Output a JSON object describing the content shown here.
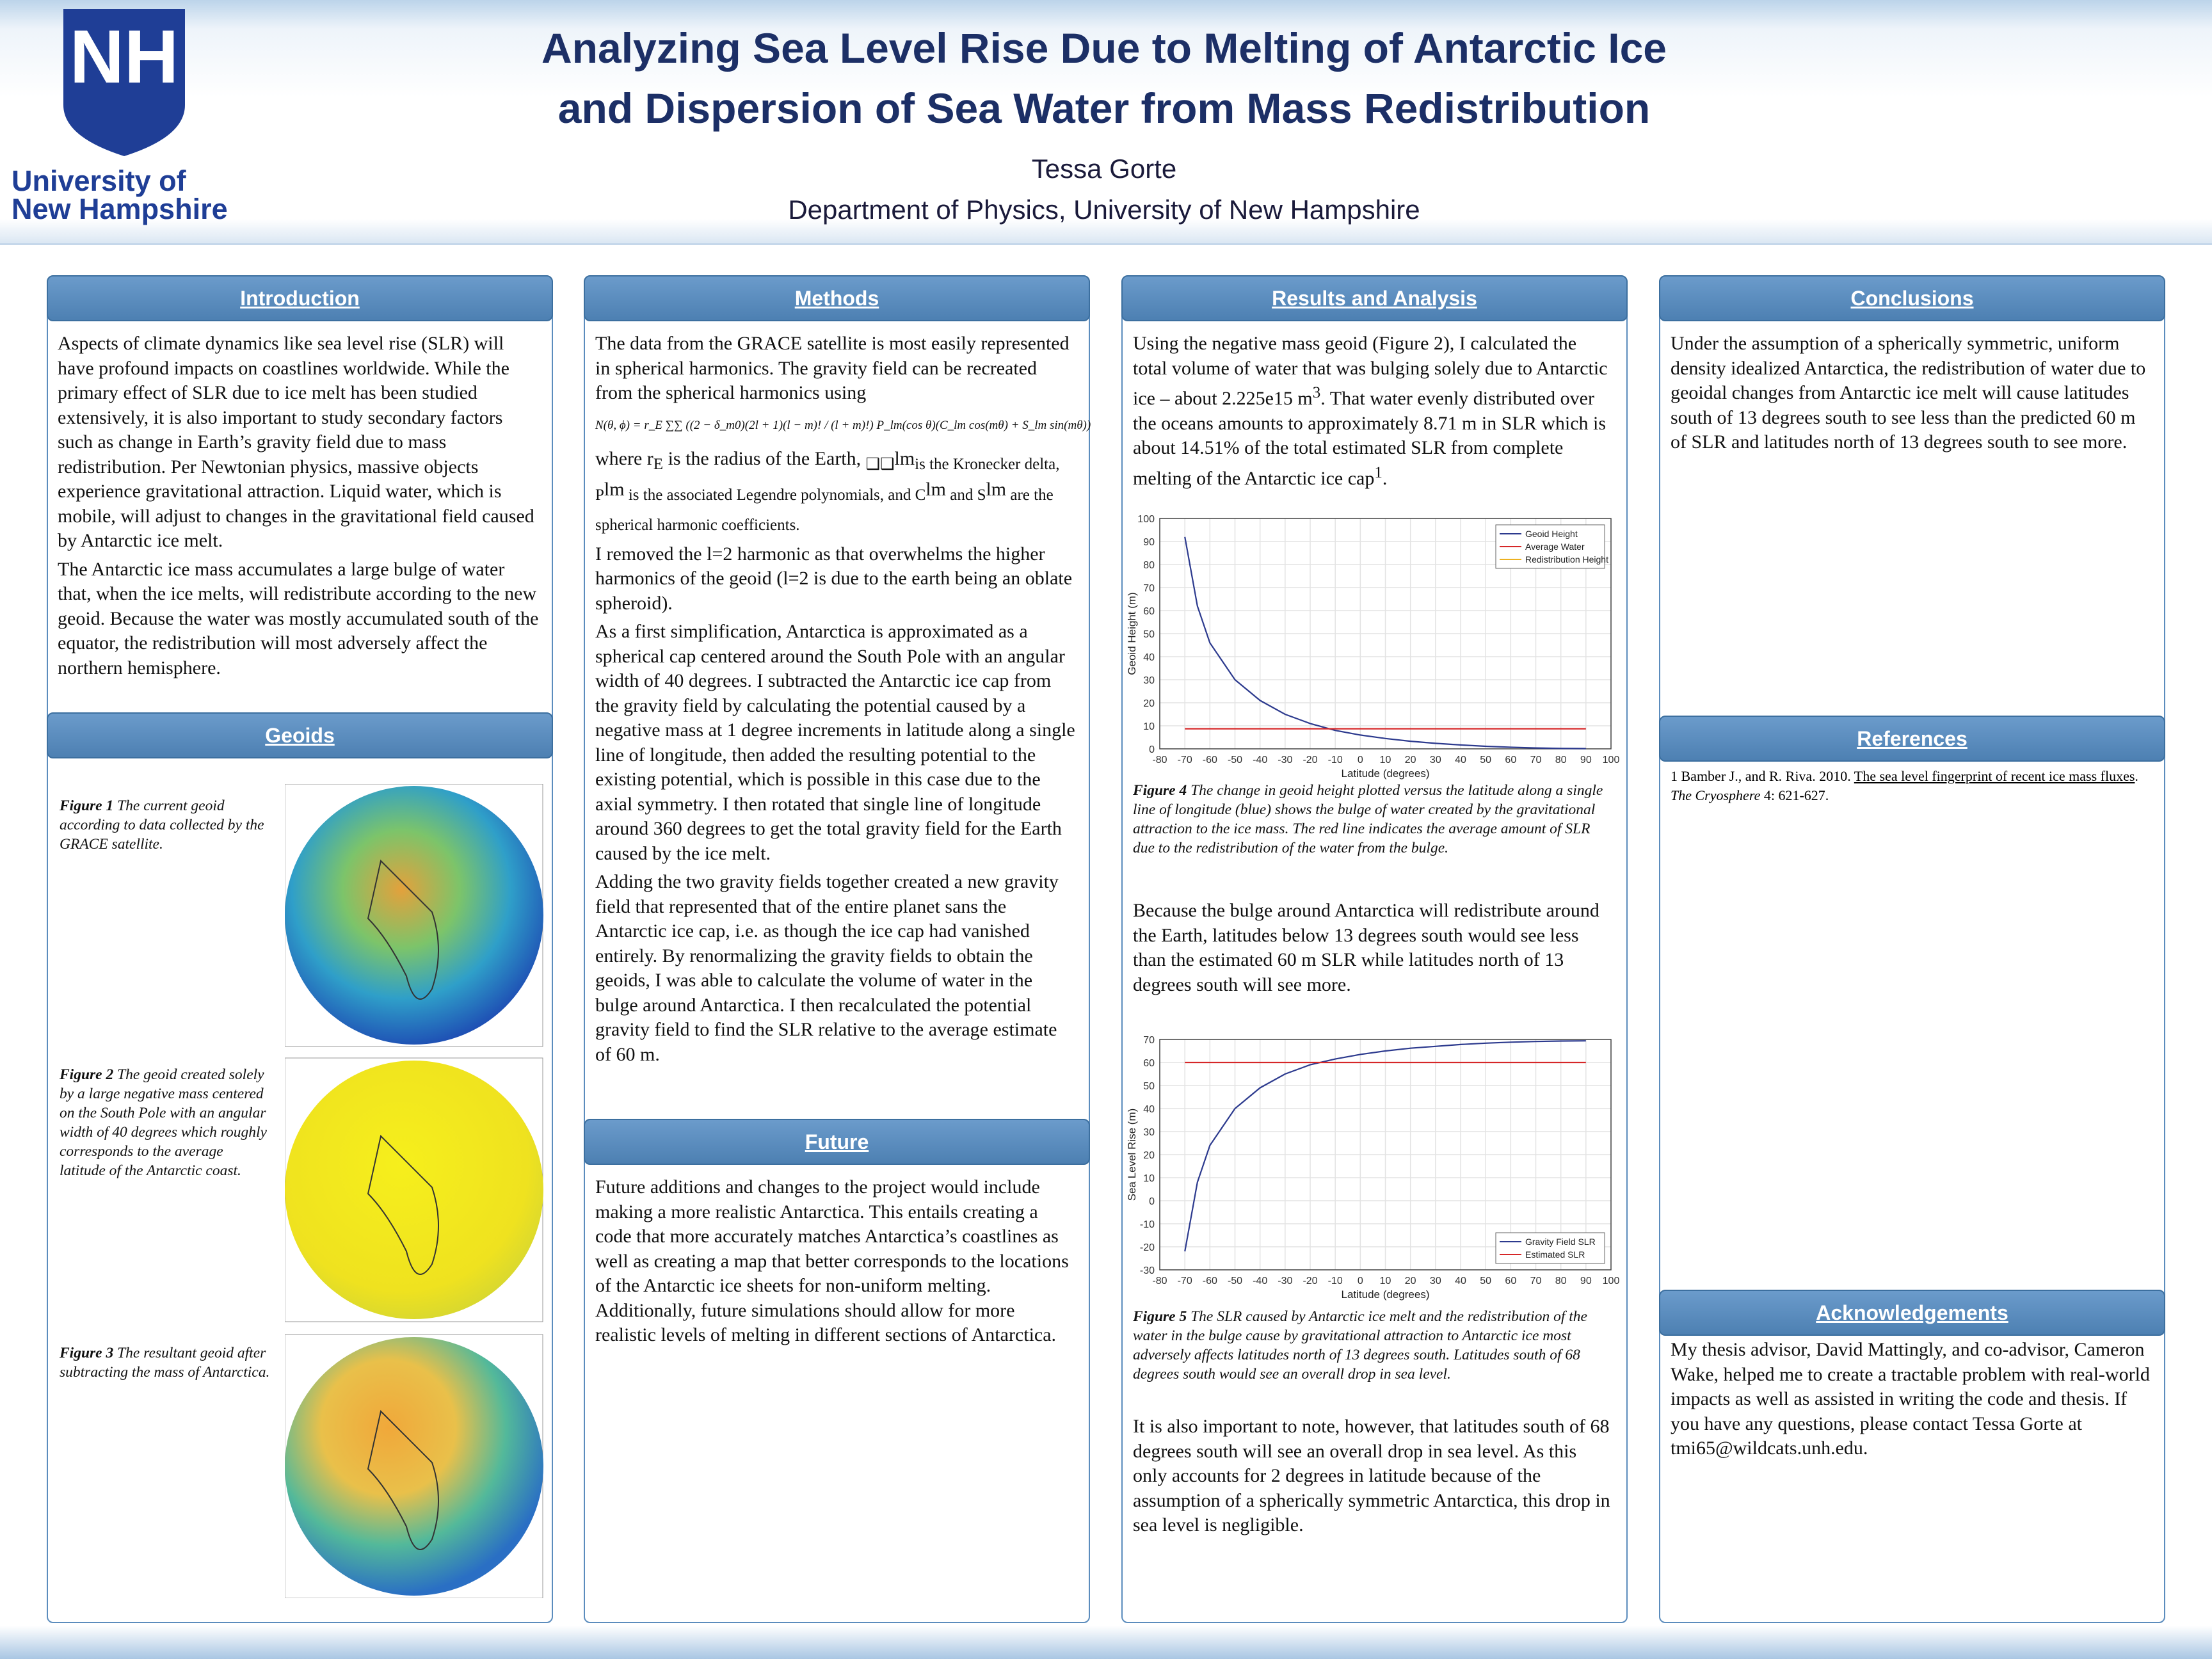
{
  "header": {
    "logo": {
      "mark": "NH",
      "line1": "University of",
      "line2": "New Hampshire"
    },
    "title_line1": "Analyzing Sea Level Rise Due to Melting of Antarctic Ice",
    "title_line2": "and Dispersion of Sea Water from Mass Redistribution",
    "author": "Tessa Gorte",
    "department": "Department of Physics, University of New Hampshire"
  },
  "introduction": {
    "heading": "Introduction",
    "paragraphs": [
      "Aspects of climate dynamics like sea level rise (SLR) will have profound impacts on coastlines worldwide. While the primary effect of SLR due to ice melt has been studied extensively, it is also important to study secondary factors such as change in Earth’s gravity field due to mass redistribution. Per Newtonian physics, massive objects experience gravitational attraction. Liquid water, which is mobile, will adjust to changes in the gravitational field caused by Antarctic ice melt.",
      "The Antarctic ice mass accumulates a large bulge of water that, when the ice melts, will redistribute according to the new geoid. Because the water was mostly accumulated south of the equator, the redistribution will most adversely affect the northern hemisphere."
    ]
  },
  "geoids": {
    "heading": "Geoids",
    "figures": [
      {
        "label": "Figure 1",
        "caption": " The current geoid according to data collected by the GRACE satellite."
      },
      {
        "label": "Figure 2",
        "caption": " The geoid created solely by a large negative mass centered on the South Pole with an angular width of 40 degrees which roughly corresponds to the average latitude of the Antarctic coast."
      },
      {
        "label": "Figure 3",
        "caption": " The resultant geoid after subtracting the mass of Antarctica."
      }
    ]
  },
  "methods": {
    "heading": "Methods",
    "intro": "The data from the GRACE satellite is most easily represented  in spherical harmonics. The gravity field can be recreated from the spherical harmonics using",
    "equation": "N(θ, ϕ) = r_E ∑∑ ((2 − δ_m0)(2l + 1)(l − m)! / (l + m)!) P_lm(cos θ)(C_lm cos(mθ) + S_lm sin(mθ))",
    "where_parts": [
      "where r",
      "E",
      " is the radius of the Earth, ",
      "❑❑",
      "lm",
      "is the Kronecker delta, P",
      "lm",
      " is the associated Legendre polynomials, and C",
      "lm",
      " and S",
      "lm",
      " are the spherical harmonic coefficients."
    ],
    "paragraphs": [
      "I removed the l=2 harmonic as that overwhelms the higher harmonics of the geoid (l=2 is due to the earth being an oblate spheroid).",
      "As a first simplification, Antarctica is approximated as a spherical cap centered around the South Pole with an angular width of 40 degrees. I subtracted the Antarctic ice cap from the gravity field by calculating the potential caused by a negative mass at 1 degree increments in latitude along a single line of longitude, then added the resulting potential to the existing potential, which is possible in this case due to the axial symmetry. I then rotated that single line of longitude around 360 degrees to get the total gravity field for the Earth caused by the ice melt.",
      "Adding the two gravity fields together created a new gravity field that represented that of the entire planet sans the Antarctic ice cap, i.e. as though the ice cap had vanished entirely. By renormalizing the gravity fields to obtain the geoids, I was able to calculate the volume of water in the bulge around Antarctica. I then recalculated the potential gravity field to find the SLR relative to the average estimate of 60 m."
    ]
  },
  "future": {
    "heading": "Future",
    "paragraphs": [
      "Future additions and changes to the project would include making a more realistic Antarctica. This entails creating a code that more accurately matches Antarctica’s coastlines as well as creating a map that better corresponds to the locations of the Antarctic ice sheets for non-uniform melting. Additionally, future simulations should allow for more realistic levels of melting in different sections of Antarctica."
    ]
  },
  "results": {
    "heading": "Results and Analysis",
    "first_parts": [
      "Using the negative mass geoid (Figure 2), I calculated the total volume of water that was bulging solely due to Antarctic ice – about 2.225e15 m",
      "3",
      ". That water evenly distributed over the oceans amounts to approximately 8.71 m in SLR which is about 14.51% of the total estimated SLR from complete melting of the Antarctic ice cap",
      "1",
      "."
    ],
    "paragraphs": [
      "Because the bulge around Antarctica will redistribute around the Earth, latitudes below 13 degrees south would see less than the estimated 60 m SLR while latitudes north of 13 degrees south will see more.",
      "It is also important to note, however, that latitudes south of 68 degrees south will see an overall drop in sea level. As this only accounts for 2 degrees in latitude because of the assumption of a spherically symmetric Antarctica, this drop in sea level is negligible."
    ],
    "figure4": {
      "label": "Figure 4",
      "caption": " The change in geoid height plotted versus the latitude along a single line of longitude (blue) shows the bulge of water created by the gravitational attraction to the ice mass. The red line indicates the average amount of SLR due to the redistribution of the water from the bulge.",
      "chart": {
        "type": "line",
        "xlabel": "Latitude (degrees)",
        "ylabel": "Geoid Height (m)",
        "x": [
          -70,
          -65,
          -60,
          -50,
          -40,
          -30,
          -20,
          -10,
          0,
          10,
          20,
          30,
          40,
          50,
          60,
          70,
          80,
          90
        ],
        "xlim": [
          -80,
          100
        ],
        "xticks": [
          -80,
          -70,
          -60,
          -50,
          -40,
          -30,
          -20,
          -10,
          0,
          10,
          20,
          30,
          40,
          50,
          60,
          70,
          80,
          90,
          100
        ],
        "ylim": [
          0,
          100
        ],
        "yticks": [
          0,
          10,
          20,
          30,
          40,
          50,
          60,
          70,
          80,
          90,
          100
        ],
        "grid": true,
        "legend": "northeast",
        "series": [
          {
            "name": "Geoid Height",
            "color": "#2c3a8e",
            "values": [
              92,
              62,
              46,
              30,
              21,
              15,
              11,
              8,
              6,
              4.5,
              3.3,
              2.4,
              1.7,
              1.1,
              0.7,
              0.4,
              0.2,
              0.1
            ]
          },
          {
            "name": "Average Water",
            "color": "#d62728",
            "values": [
              8.71,
              8.71,
              8.71,
              8.71,
              8.71,
              8.71,
              8.71,
              8.71,
              8.71,
              8.71,
              8.71,
              8.71,
              8.71,
              8.71,
              8.71,
              8.71,
              8.71,
              8.71
            ]
          },
          {
            "name": "Redistribution Height",
            "color": "#edb120"
          }
        ]
      }
    },
    "figure5": {
      "label": "Figure 5",
      "caption": " The SLR caused by Antarctic ice melt and the redistribution of the water in the bulge cause by gravitational attraction to Antarctic ice most adversely affects latitudes north of 13 degrees south. Latitudes south of 68 degrees south would see an overall drop in sea level.",
      "chart": {
        "type": "line",
        "xlabel": "Latitude (degrees)",
        "ylabel": "Sea Level Rise (m)",
        "x": [
          -70,
          -65,
          -60,
          -50,
          -40,
          -30,
          -20,
          -10,
          0,
          10,
          20,
          30,
          40,
          50,
          60,
          70,
          80,
          90
        ],
        "xlim": [
          -80,
          100
        ],
        "xticks": [
          -80,
          -70,
          -60,
          -50,
          -40,
          -30,
          -20,
          -10,
          0,
          10,
          20,
          30,
          40,
          50,
          60,
          70,
          80,
          90,
          100
        ],
        "ylim": [
          -30,
          70
        ],
        "yticks": [
          -30,
          -20,
          -10,
          0,
          10,
          20,
          30,
          40,
          50,
          60,
          70
        ],
        "grid": true,
        "legend": "southeast",
        "series": [
          {
            "name": "Gravity Field SLR",
            "color": "#2c3a8e",
            "values": [
              -22,
              8,
              24,
              40,
              49,
              55,
              59,
              61.5,
              63.5,
              65,
              66.2,
              67,
              67.8,
              68.4,
              68.8,
              69.1,
              69.3,
              69.4
            ]
          },
          {
            "name": "Estimated SLR",
            "color": "#d62728",
            "values": [
              60,
              60,
              60,
              60,
              60,
              60,
              60,
              60,
              60,
              60,
              60,
              60,
              60,
              60,
              60,
              60,
              60,
              60
            ]
          }
        ]
      }
    }
  },
  "conclusions": {
    "heading": "Conclusions",
    "paragraphs": [
      "Under the assumption of a spherically symmetric, uniform density idealized Antarctica, the redistribution of water due to geoidal changes from Antarctic ice melt will cause latitudes south of 13 degrees south to see less than the predicted 60 m of SLR and latitudes north of 13 degrees south to see more."
    ]
  },
  "references": {
    "heading": "References",
    "items": [
      [
        "1 Bamber J., and R. Riva. 2010. ",
        "The sea level fingerprint of recent ice mass fluxes",
        ". ",
        "The Cryosphere",
        " 4: 621-627."
      ]
    ]
  },
  "acknowledgements": {
    "heading": "Acknowledgements",
    "paragraphs": [
      "My thesis advisor, David Mattingly, and co-advisor, Cameron Wake, helped me to create a tractable problem with real-world impacts as well as assisted in writing the code and thesis. If you have any questions, please contact Tessa Gorte at tmi65@wildcats.unh.edu."
    ]
  }
}
